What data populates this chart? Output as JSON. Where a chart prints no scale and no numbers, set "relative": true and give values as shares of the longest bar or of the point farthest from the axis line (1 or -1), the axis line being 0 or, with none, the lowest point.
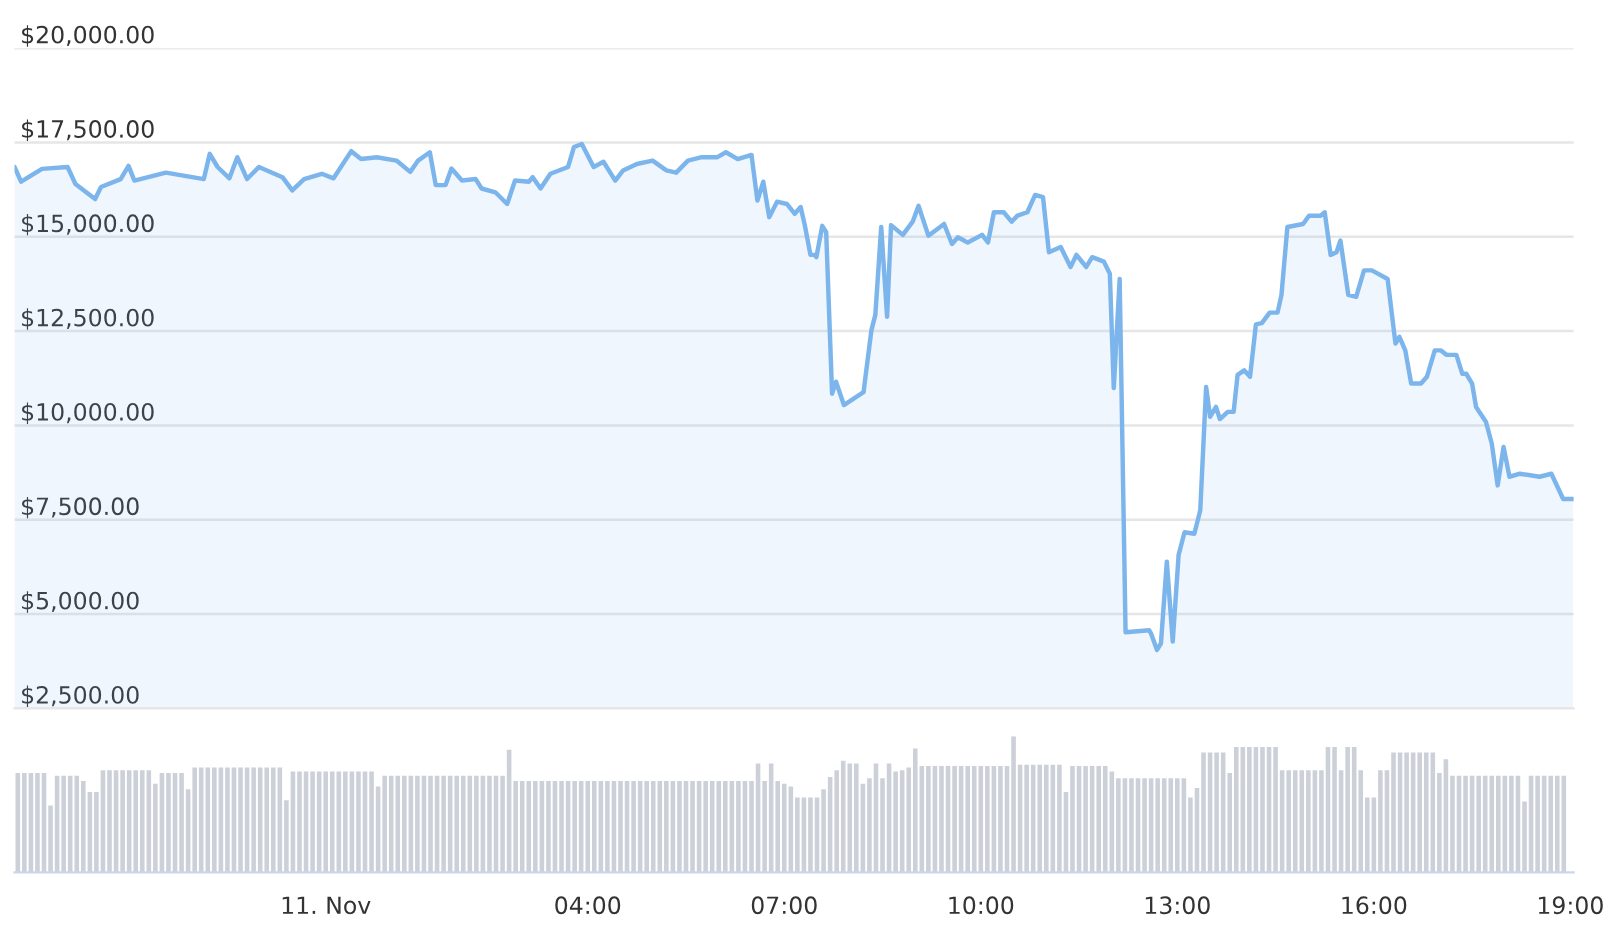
{
  "chart_data": [
    {
      "type": "area",
      "color": "#7cb5ec",
      "grid": "y",
      "tick_labels": "y",
      "legend": false,
      "xlim": [
        -4.75,
        19.05
      ],
      "ylim": [
        2500,
        20000
      ],
      "yticks": [
        {
          "value": 2500,
          "label": "$2,500.00"
        },
        {
          "value": 5000,
          "label": "$5,000.00"
        },
        {
          "value": 7500,
          "label": "$7,500.00"
        },
        {
          "value": 10000,
          "label": "$10,000.00"
        },
        {
          "value": 12500,
          "label": "$12,500.00"
        },
        {
          "value": 15000,
          "label": "$15,000.00"
        },
        {
          "value": 17500,
          "label": "$17,500.00"
        },
        {
          "value": 20000,
          "label": "$20,000.00"
        }
      ],
      "x": [
        -4.75,
        -4.65,
        -4.33,
        -3.94,
        -3.82,
        -3.52,
        -3.43,
        -3.13,
        -3.01,
        -2.92,
        -2.44,
        -1.86,
        -1.77,
        -1.65,
        -1.47,
        -1.35,
        -1.2,
        -1.02,
        -0.66,
        -0.51,
        -0.33,
        -0.06,
        0.12,
        0.39,
        0.54,
        0.78,
        1.08,
        1.29,
        1.41,
        1.59,
        1.68,
        1.83,
        1.92,
        2.08,
        2.29,
        2.38,
        2.59,
        2.77,
        2.89,
        3.1,
        3.16,
        3.28,
        3.43,
        3.7,
        3.79,
        3.91,
        4.09,
        4.24,
        4.42,
        4.54,
        4.75,
        4.99,
        5.2,
        5.35,
        5.53,
        5.74,
        5.98,
        6.11,
        6.29,
        6.5,
        6.59,
        6.68,
        6.77,
        6.89,
        7.04,
        7.16,
        7.25,
        7.31,
        7.4,
        7.46,
        7.49,
        7.58,
        7.64,
        7.73,
        7.79,
        7.91,
        8.21,
        8.33,
        8.39,
        8.48,
        8.57,
        8.63,
        8.81,
        8.96,
        9.05,
        9.2,
        9.44,
        9.56,
        9.65,
        9.8,
        10.02,
        10.11,
        10.2,
        10.35,
        10.47,
        10.56,
        10.71,
        10.83,
        10.95,
        11.04,
        11.22,
        11.37,
        11.46,
        11.61,
        11.7,
        11.88,
        11.97,
        12.03,
        12.12,
        12.21,
        12.57,
        12.6,
        12.69,
        12.75,
        12.84,
        12.93,
        13.02,
        13.11,
        13.26,
        13.35,
        13.44,
        13.5,
        13.59,
        13.65,
        13.77,
        13.86,
        13.92,
        14.02,
        14.11,
        14.2,
        14.29,
        14.41,
        14.53,
        14.59,
        14.68,
        14.92,
        15.01,
        15.19,
        15.25,
        15.34,
        15.43,
        15.49,
        15.61,
        15.73,
        15.85,
        15.97,
        16.21,
        16.33,
        16.39,
        16.48,
        16.57,
        16.72,
        16.81,
        16.93,
        17.02,
        17.11,
        17.26,
        17.35,
        17.41,
        17.5,
        17.56,
        17.71,
        17.8,
        17.89,
        17.98,
        18.07,
        18.23,
        18.53,
        18.71,
        18.89,
        19.04
      ],
      "values": [
        16850,
        16460,
        16800,
        16850,
        16400,
        16000,
        16320,
        16530,
        16880,
        16490,
        16700,
        16530,
        17200,
        16850,
        16550,
        17110,
        16530,
        16850,
        16580,
        16230,
        16530,
        16670,
        16550,
        17270,
        17060,
        17110,
        17020,
        16720,
        17020,
        17240,
        16370,
        16370,
        16810,
        16490,
        16530,
        16280,
        16180,
        15870,
        16490,
        16460,
        16580,
        16280,
        16670,
        16850,
        17380,
        17460,
        16850,
        16990,
        16490,
        16760,
        16930,
        17020,
        16760,
        16700,
        17020,
        17110,
        17110,
        17240,
        17060,
        17170,
        15960,
        16460,
        15520,
        15930,
        15870,
        15610,
        15790,
        15340,
        14520,
        14520,
        14460,
        15290,
        15120,
        10840,
        11160,
        10540,
        10880,
        12520,
        12930,
        15260,
        12880,
        15310,
        15050,
        15400,
        15820,
        15030,
        15340,
        14810,
        14990,
        14850,
        15050,
        14850,
        15650,
        15650,
        15400,
        15560,
        15650,
        16110,
        16050,
        14590,
        14730,
        14200,
        14520,
        14200,
        14460,
        14340,
        14020,
        10990,
        13880,
        4520,
        4570,
        4480,
        4050,
        4220,
        6390,
        4270,
        6570,
        7170,
        7130,
        7750,
        11020,
        10230,
        10490,
        10170,
        10360,
        10360,
        11340,
        11460,
        11290,
        12680,
        12710,
        12990,
        12990,
        13460,
        15260,
        15340,
        15560,
        15560,
        15650,
        14520,
        14590,
        14900,
        13460,
        13410,
        14110,
        14110,
        13880,
        12170,
        12350,
        11990,
        11110,
        11110,
        11290,
        11990,
        11990,
        11870,
        11870,
        11370,
        11370,
        11110,
        10490,
        10100,
        9520,
        8410,
        9430,
        8640,
        8720,
        8640,
        8720,
        8050,
        8050
      ]
    },
    {
      "type": "bar",
      "relative": true,
      "color": "#ccd0d8",
      "tick_labels": "x",
      "legend": false,
      "xlim": [
        -4.75,
        19.05
      ],
      "xticks": [
        {
          "value": 0,
          "label": "11. Nov"
        },
        {
          "value": 4,
          "label": "04:00"
        },
        {
          "value": 7,
          "label": "07:00"
        },
        {
          "value": 10,
          "label": "10:00"
        },
        {
          "value": 13,
          "label": "13:00"
        },
        {
          "value": 16,
          "label": "16:00"
        },
        {
          "value": 19,
          "label": "19:00"
        }
      ],
      "x": [
        -4.7,
        -4.6,
        -4.5,
        -4.4,
        -4.3,
        -4.2,
        -4.1,
        -4.0,
        -3.9,
        -3.8,
        -3.7,
        -3.6,
        -3.5,
        -3.4,
        -3.3,
        -3.2,
        -3.1,
        -3.0,
        -2.9,
        -2.8,
        -2.7,
        -2.6,
        -2.5,
        -2.4,
        -2.3,
        -2.2,
        -2.1,
        -2.0,
        -1.9,
        -1.8,
        -1.7,
        -1.6,
        -1.5,
        -1.4,
        -1.3,
        -1.2,
        -1.1,
        -1.0,
        -0.9,
        -0.8,
        -0.7,
        -0.6,
        -0.5,
        -0.4,
        -0.3,
        -0.2,
        -0.1,
        0.0,
        0.1,
        0.2,
        0.3,
        0.4,
        0.5,
        0.6,
        0.7,
        0.8,
        0.9,
        1.0,
        1.1,
        1.2,
        1.3,
        1.4,
        1.5,
        1.6,
        1.7,
        1.8,
        1.9,
        2.0,
        2.1,
        2.2,
        2.3,
        2.4,
        2.5,
        2.6,
        2.7,
        2.8,
        2.9,
        3.0,
        3.1,
        3.2,
        3.3,
        3.4,
        3.5,
        3.6,
        3.7,
        3.8,
        3.9,
        4.0,
        4.1,
        4.2,
        4.3,
        4.4,
        4.5,
        4.6,
        4.7,
        4.8,
        4.9,
        5.0,
        5.1,
        5.2,
        5.3,
        5.4,
        5.5,
        5.6,
        5.7,
        5.8,
        5.9,
        6.0,
        6.1,
        6.2,
        6.3,
        6.4,
        6.5,
        6.6,
        6.7,
        6.8,
        6.9,
        7.0,
        7.1,
        7.2,
        7.3,
        7.4,
        7.5,
        7.6,
        7.7,
        7.8,
        7.9,
        8.0,
        8.1,
        8.2,
        8.3,
        8.4,
        8.5,
        8.6,
        8.7,
        8.8,
        8.9,
        9.0,
        9.1,
        9.2,
        9.3,
        9.4,
        9.5,
        9.6,
        9.7,
        9.8,
        9.9,
        10.0,
        10.1,
        10.2,
        10.3,
        10.4,
        10.5,
        10.6,
        10.7,
        10.8,
        10.9,
        11.0,
        11.1,
        11.2,
        11.3,
        11.4,
        11.5,
        11.6,
        11.7,
        11.8,
        11.9,
        12.0,
        12.1,
        12.2,
        12.3,
        12.4,
        12.5,
        12.6,
        12.7,
        12.8,
        12.9,
        13.0,
        13.1,
        13.2,
        13.3,
        13.4,
        13.5,
        13.6,
        13.7,
        13.8,
        13.9,
        14.0,
        14.1,
        14.2,
        14.3,
        14.4,
        14.5,
        14.6,
        14.7,
        14.8,
        14.9,
        15.0,
        15.1,
        15.2,
        15.3,
        15.4,
        15.5,
        15.6,
        15.7,
        15.8,
        15.9,
        16.0,
        16.1,
        16.2,
        16.3,
        16.4,
        16.5,
        16.6,
        16.7,
        16.8,
        16.9,
        17.0,
        17.1,
        17.2,
        17.3,
        17.4,
        17.5,
        17.6,
        17.7,
        17.8,
        17.9,
        18.0,
        18.1,
        18.2,
        18.3,
        18.4,
        18.5,
        18.6,
        18.7,
        18.8,
        18.9
      ],
      "values": [
        0.73,
        0.73,
        0.73,
        0.73,
        0.73,
        0.49,
        0.71,
        0.71,
        0.71,
        0.71,
        0.67,
        0.59,
        0.59,
        0.75,
        0.75,
        0.75,
        0.75,
        0.75,
        0.75,
        0.75,
        0.75,
        0.65,
        0.73,
        0.73,
        0.73,
        0.73,
        0.61,
        0.77,
        0.77,
        0.77,
        0.77,
        0.77,
        0.77,
        0.77,
        0.77,
        0.77,
        0.77,
        0.77,
        0.77,
        0.77,
        0.77,
        0.53,
        0.74,
        0.74,
        0.74,
        0.74,
        0.74,
        0.74,
        0.74,
        0.74,
        0.74,
        0.74,
        0.74,
        0.74,
        0.74,
        0.63,
        0.71,
        0.71,
        0.71,
        0.71,
        0.71,
        0.71,
        0.71,
        0.71,
        0.71,
        0.71,
        0.71,
        0.71,
        0.71,
        0.71,
        0.71,
        0.71,
        0.71,
        0.71,
        0.71,
        0.9,
        0.67,
        0.67,
        0.67,
        0.67,
        0.67,
        0.67,
        0.67,
        0.67,
        0.67,
        0.67,
        0.67,
        0.67,
        0.67,
        0.67,
        0.67,
        0.67,
        0.67,
        0.67,
        0.67,
        0.67,
        0.67,
        0.67,
        0.67,
        0.67,
        0.67,
        0.67,
        0.67,
        0.67,
        0.67,
        0.67,
        0.67,
        0.67,
        0.67,
        0.67,
        0.67,
        0.67,
        0.67,
        0.8,
        0.67,
        0.8,
        0.67,
        0.65,
        0.63,
        0.55,
        0.55,
        0.55,
        0.55,
        0.61,
        0.7,
        0.75,
        0.82,
        0.8,
        0.8,
        0.65,
        0.69,
        0.8,
        0.69,
        0.8,
        0.74,
        0.75,
        0.77,
        0.91,
        0.78,
        0.78,
        0.78,
        0.78,
        0.78,
        0.78,
        0.78,
        0.78,
        0.78,
        0.78,
        0.78,
        0.78,
        0.78,
        0.78,
        1.0,
        0.79,
        0.79,
        0.79,
        0.79,
        0.79,
        0.79,
        0.79,
        0.59,
        0.78,
        0.78,
        0.78,
        0.78,
        0.78,
        0.78,
        0.74,
        0.69,
        0.69,
        0.69,
        0.69,
        0.69,
        0.69,
        0.69,
        0.69,
        0.69,
        0.69,
        0.69,
        0.55,
        0.62,
        0.88,
        0.88,
        0.88,
        0.88,
        0.73,
        0.92,
        0.92,
        0.92,
        0.92,
        0.92,
        0.92,
        0.92,
        0.75,
        0.75,
        0.75,
        0.75,
        0.75,
        0.75,
        0.75,
        0.92,
        0.92,
        0.75,
        0.92,
        0.92,
        0.75,
        0.55,
        0.55,
        0.75,
        0.75,
        0.88,
        0.88,
        0.88,
        0.88,
        0.88,
        0.88,
        0.88,
        0.73,
        0.83,
        0.71,
        0.71,
        0.71,
        0.71,
        0.71,
        0.71,
        0.71,
        0.71,
        0.71,
        0.71,
        0.71,
        0.52,
        0.71,
        0.71,
        0.71,
        0.71,
        0.71,
        0.71
      ]
    }
  ]
}
